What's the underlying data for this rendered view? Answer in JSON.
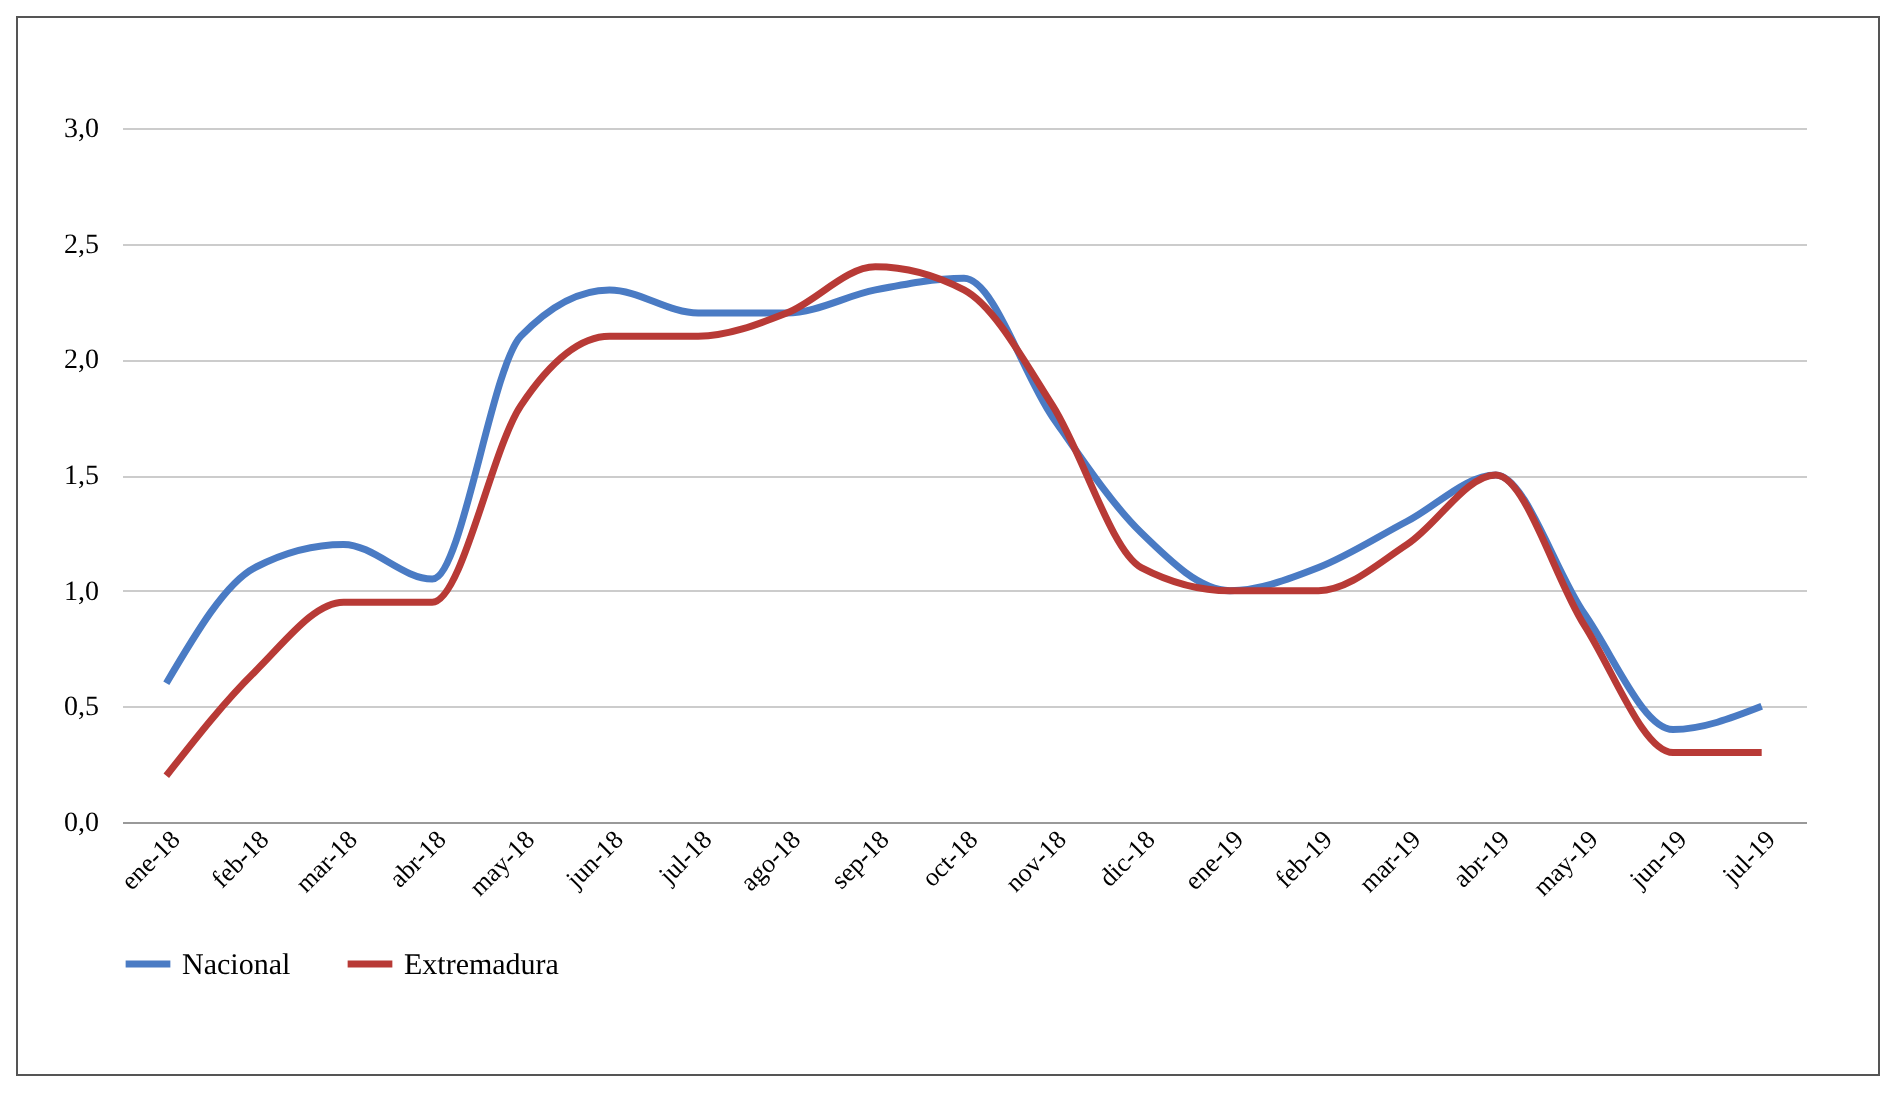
{
  "chart_data": {
    "type": "line",
    "categories": [
      "ene-18",
      "feb-18",
      "mar-18",
      "abr-18",
      "may-18",
      "jun-18",
      "jul-18",
      "ago-18",
      "sep-18",
      "oct-18",
      "nov-18",
      "dic-18",
      "ene-19",
      "feb-19",
      "mar-19",
      "abr-19",
      "may-19",
      "jun-19",
      "jul-19"
    ],
    "series": [
      {
        "name": "Nacional",
        "color": "#4a7bc4",
        "values": [
          0.6,
          1.1,
          1.2,
          1.05,
          2.1,
          2.3,
          2.2,
          2.2,
          2.3,
          2.35,
          1.75,
          1.25,
          1.0,
          1.1,
          1.3,
          1.5,
          0.9,
          0.4,
          0.5
        ]
      },
      {
        "name": "Extremadura",
        "color": "#b83a36",
        "values": [
          0.2,
          0.65,
          0.95,
          0.95,
          1.8,
          2.1,
          2.1,
          2.2,
          2.4,
          2.3,
          1.8,
          1.1,
          1.0,
          1.0,
          1.2,
          1.5,
          0.85,
          0.3,
          0.3
        ]
      }
    ],
    "ylim": [
      0,
      3
    ],
    "yticks": [
      {
        "value": 0,
        "label": "0,0"
      },
      {
        "value": 0.5,
        "label": "0,5"
      },
      {
        "value": 1,
        "label": "1,0"
      },
      {
        "value": 1.5,
        "label": "1,5"
      },
      {
        "value": 2,
        "label": "2,0"
      },
      {
        "value": 2.5,
        "label": "2,5"
      },
      {
        "value": 3,
        "label": "3,0"
      }
    ],
    "grid": "y",
    "legend": "bottom",
    "marker": "none",
    "line_style": "solid"
  }
}
